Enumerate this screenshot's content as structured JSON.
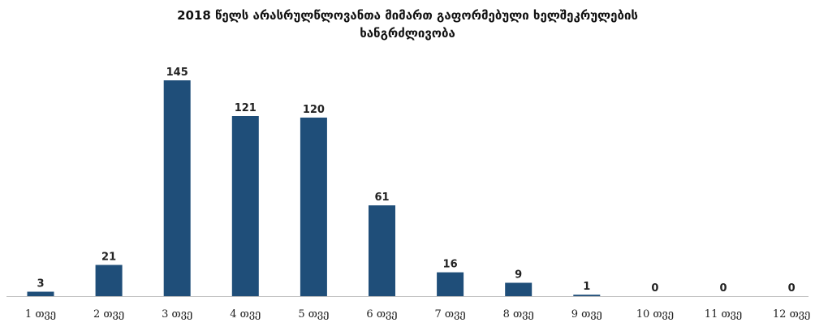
{
  "chart_data": {
    "type": "bar",
    "title_line1": "2018 წელს არასრულწლოვანთა მიმართ გაფორმებული ხელშეკრულების",
    "title_line2": "ხანგრძლივობა",
    "categories": [
      "1 თვე",
      "2 თვე",
      "3 თვე",
      "4 თვე",
      "5 თვე",
      "6 თვე",
      "7 თვე",
      "8 თვე",
      "9 თვე",
      "10 თვე",
      "11 თვე",
      "12 თვე"
    ],
    "values": [
      3,
      21,
      145,
      121,
      120,
      61,
      16,
      9,
      1,
      0,
      0,
      0
    ],
    "data_labels": [
      "3",
      "21",
      "145",
      "121",
      "120",
      "61",
      "16",
      "9",
      "1",
      "0",
      "0",
      "0"
    ],
    "ylim": [
      0,
      145
    ],
    "grid": false,
    "legend": "none",
    "bar_color": "#1f4e79"
  }
}
